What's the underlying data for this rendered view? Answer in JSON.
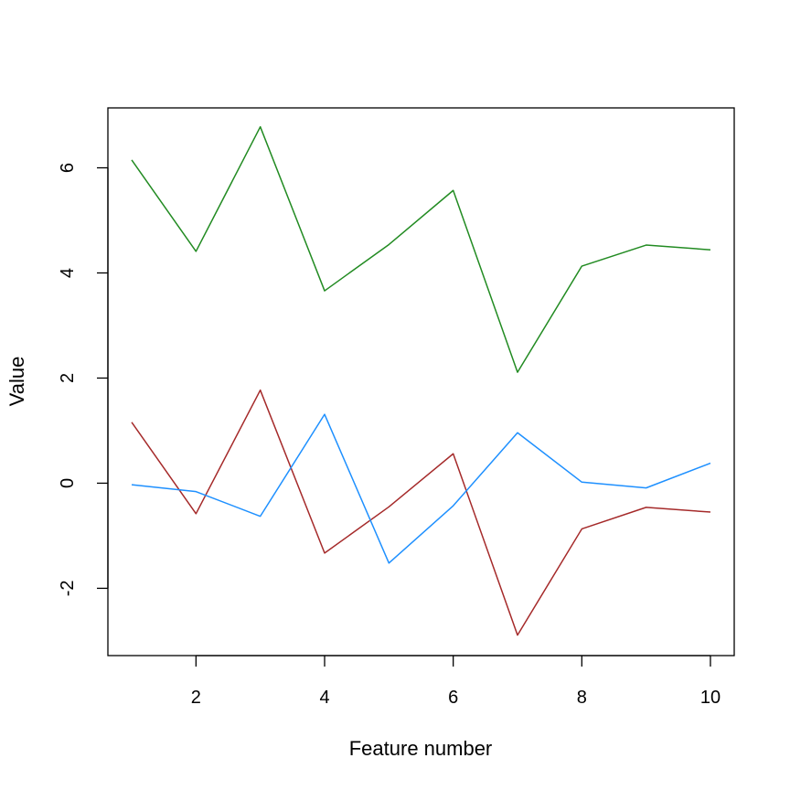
{
  "chart_data": {
    "type": "line",
    "title": "",
    "xlabel": "Feature number",
    "ylabel": "Value",
    "xlim": [
      0.63,
      10.37
    ],
    "ylim": [
      -3.28,
      7.14
    ],
    "x": [
      1,
      2,
      3,
      4,
      5,
      6,
      7,
      8,
      9,
      10
    ],
    "x_ticks": [
      2,
      4,
      6,
      8,
      10
    ],
    "y_ticks": [
      -2,
      0,
      2,
      4,
      6
    ],
    "grid": false,
    "legend": "none",
    "series": [
      {
        "color": "#228B22",
        "values": [
          6.15,
          4.41,
          6.78,
          3.66,
          4.54,
          5.57,
          2.11,
          4.13,
          4.53,
          4.44
        ]
      },
      {
        "color": "#A52A2A",
        "values": [
          1.16,
          -0.58,
          1.77,
          -1.33,
          -0.45,
          0.56,
          -2.89,
          -0.87,
          -0.46,
          -0.55
        ]
      },
      {
        "color": "#1E90FF",
        "values": [
          -0.03,
          -0.16,
          -0.63,
          1.31,
          -1.52,
          -0.43,
          0.96,
          0.02,
          -0.09,
          0.38
        ]
      }
    ]
  }
}
